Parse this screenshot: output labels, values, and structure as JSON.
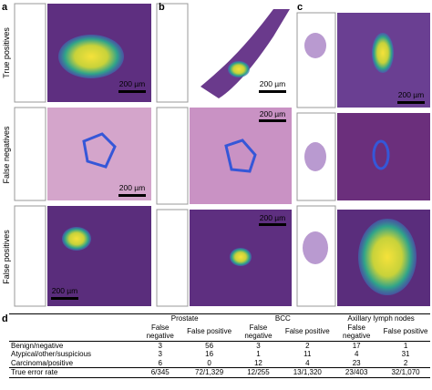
{
  "panels": [
    {
      "label": "a"
    },
    {
      "label": "b"
    },
    {
      "label": "c"
    }
  ],
  "row_labels": [
    "True positives",
    "False negatives",
    "False positives"
  ],
  "scale_bars": [
    "200 µm",
    "200 µm",
    "200 µm",
    "200 µm",
    "200 µm",
    "200 µm",
    "200 µm"
  ],
  "table": {
    "label": "d",
    "groups": [
      "Prostate",
      "BCC",
      "Axillary lymph nodes"
    ],
    "subheaders": [
      "False negative",
      "False positive",
      "False negative",
      "False positive",
      "False negative",
      "False positive"
    ],
    "rows": [
      [
        "Benign/negative",
        3,
        56,
        3,
        2,
        17,
        1
      ],
      [
        "Atypical/other/suspicious",
        3,
        16,
        1,
        11,
        4,
        31
      ],
      [
        "Carcinoma/positive",
        6,
        0,
        12,
        4,
        23,
        2
      ],
      [
        "True error rate",
        "6/345",
        "72/1,329",
        "12/255",
        "13/1,320",
        "23/403",
        "32/1,070"
      ]
    ]
  }
}
